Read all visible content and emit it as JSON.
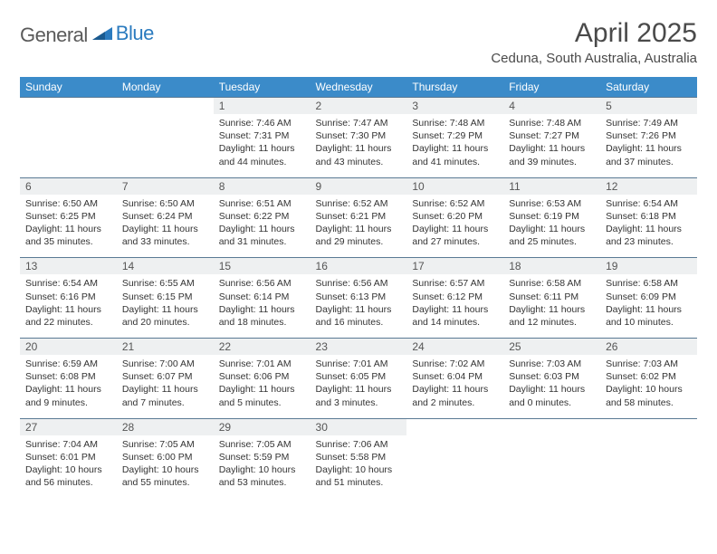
{
  "logo": {
    "word1": "General",
    "word2": "Blue"
  },
  "title": "April 2025",
  "location": "Ceduna, South Australia, Australia",
  "colors": {
    "header_bg": "#3b8bc9",
    "header_text": "#ffffff",
    "daynum_bg": "#eef0f1",
    "border": "#5a7a94",
    "logo_gray": "#5a5a5a",
    "logo_blue": "#2b7bbf"
  },
  "day_labels": [
    "Sunday",
    "Monday",
    "Tuesday",
    "Wednesday",
    "Thursday",
    "Friday",
    "Saturday"
  ],
  "weeks": [
    [
      null,
      null,
      {
        "n": "1",
        "sr": "Sunrise: 7:46 AM",
        "ss": "Sunset: 7:31 PM",
        "dl": "Daylight: 11 hours and 44 minutes."
      },
      {
        "n": "2",
        "sr": "Sunrise: 7:47 AM",
        "ss": "Sunset: 7:30 PM",
        "dl": "Daylight: 11 hours and 43 minutes."
      },
      {
        "n": "3",
        "sr": "Sunrise: 7:48 AM",
        "ss": "Sunset: 7:29 PM",
        "dl": "Daylight: 11 hours and 41 minutes."
      },
      {
        "n": "4",
        "sr": "Sunrise: 7:48 AM",
        "ss": "Sunset: 7:27 PM",
        "dl": "Daylight: 11 hours and 39 minutes."
      },
      {
        "n": "5",
        "sr": "Sunrise: 7:49 AM",
        "ss": "Sunset: 7:26 PM",
        "dl": "Daylight: 11 hours and 37 minutes."
      }
    ],
    [
      {
        "n": "6",
        "sr": "Sunrise: 6:50 AM",
        "ss": "Sunset: 6:25 PM",
        "dl": "Daylight: 11 hours and 35 minutes."
      },
      {
        "n": "7",
        "sr": "Sunrise: 6:50 AM",
        "ss": "Sunset: 6:24 PM",
        "dl": "Daylight: 11 hours and 33 minutes."
      },
      {
        "n": "8",
        "sr": "Sunrise: 6:51 AM",
        "ss": "Sunset: 6:22 PM",
        "dl": "Daylight: 11 hours and 31 minutes."
      },
      {
        "n": "9",
        "sr": "Sunrise: 6:52 AM",
        "ss": "Sunset: 6:21 PM",
        "dl": "Daylight: 11 hours and 29 minutes."
      },
      {
        "n": "10",
        "sr": "Sunrise: 6:52 AM",
        "ss": "Sunset: 6:20 PM",
        "dl": "Daylight: 11 hours and 27 minutes."
      },
      {
        "n": "11",
        "sr": "Sunrise: 6:53 AM",
        "ss": "Sunset: 6:19 PM",
        "dl": "Daylight: 11 hours and 25 minutes."
      },
      {
        "n": "12",
        "sr": "Sunrise: 6:54 AM",
        "ss": "Sunset: 6:18 PM",
        "dl": "Daylight: 11 hours and 23 minutes."
      }
    ],
    [
      {
        "n": "13",
        "sr": "Sunrise: 6:54 AM",
        "ss": "Sunset: 6:16 PM",
        "dl": "Daylight: 11 hours and 22 minutes."
      },
      {
        "n": "14",
        "sr": "Sunrise: 6:55 AM",
        "ss": "Sunset: 6:15 PM",
        "dl": "Daylight: 11 hours and 20 minutes."
      },
      {
        "n": "15",
        "sr": "Sunrise: 6:56 AM",
        "ss": "Sunset: 6:14 PM",
        "dl": "Daylight: 11 hours and 18 minutes."
      },
      {
        "n": "16",
        "sr": "Sunrise: 6:56 AM",
        "ss": "Sunset: 6:13 PM",
        "dl": "Daylight: 11 hours and 16 minutes."
      },
      {
        "n": "17",
        "sr": "Sunrise: 6:57 AM",
        "ss": "Sunset: 6:12 PM",
        "dl": "Daylight: 11 hours and 14 minutes."
      },
      {
        "n": "18",
        "sr": "Sunrise: 6:58 AM",
        "ss": "Sunset: 6:11 PM",
        "dl": "Daylight: 11 hours and 12 minutes."
      },
      {
        "n": "19",
        "sr": "Sunrise: 6:58 AM",
        "ss": "Sunset: 6:09 PM",
        "dl": "Daylight: 11 hours and 10 minutes."
      }
    ],
    [
      {
        "n": "20",
        "sr": "Sunrise: 6:59 AM",
        "ss": "Sunset: 6:08 PM",
        "dl": "Daylight: 11 hours and 9 minutes."
      },
      {
        "n": "21",
        "sr": "Sunrise: 7:00 AM",
        "ss": "Sunset: 6:07 PM",
        "dl": "Daylight: 11 hours and 7 minutes."
      },
      {
        "n": "22",
        "sr": "Sunrise: 7:01 AM",
        "ss": "Sunset: 6:06 PM",
        "dl": "Daylight: 11 hours and 5 minutes."
      },
      {
        "n": "23",
        "sr": "Sunrise: 7:01 AM",
        "ss": "Sunset: 6:05 PM",
        "dl": "Daylight: 11 hours and 3 minutes."
      },
      {
        "n": "24",
        "sr": "Sunrise: 7:02 AM",
        "ss": "Sunset: 6:04 PM",
        "dl": "Daylight: 11 hours and 2 minutes."
      },
      {
        "n": "25",
        "sr": "Sunrise: 7:03 AM",
        "ss": "Sunset: 6:03 PM",
        "dl": "Daylight: 11 hours and 0 minutes."
      },
      {
        "n": "26",
        "sr": "Sunrise: 7:03 AM",
        "ss": "Sunset: 6:02 PM",
        "dl": "Daylight: 10 hours and 58 minutes."
      }
    ],
    [
      {
        "n": "27",
        "sr": "Sunrise: 7:04 AM",
        "ss": "Sunset: 6:01 PM",
        "dl": "Daylight: 10 hours and 56 minutes."
      },
      {
        "n": "28",
        "sr": "Sunrise: 7:05 AM",
        "ss": "Sunset: 6:00 PM",
        "dl": "Daylight: 10 hours and 55 minutes."
      },
      {
        "n": "29",
        "sr": "Sunrise: 7:05 AM",
        "ss": "Sunset: 5:59 PM",
        "dl": "Daylight: 10 hours and 53 minutes."
      },
      {
        "n": "30",
        "sr": "Sunrise: 7:06 AM",
        "ss": "Sunset: 5:58 PM",
        "dl": "Daylight: 10 hours and 51 minutes."
      },
      null,
      null,
      null
    ]
  ]
}
